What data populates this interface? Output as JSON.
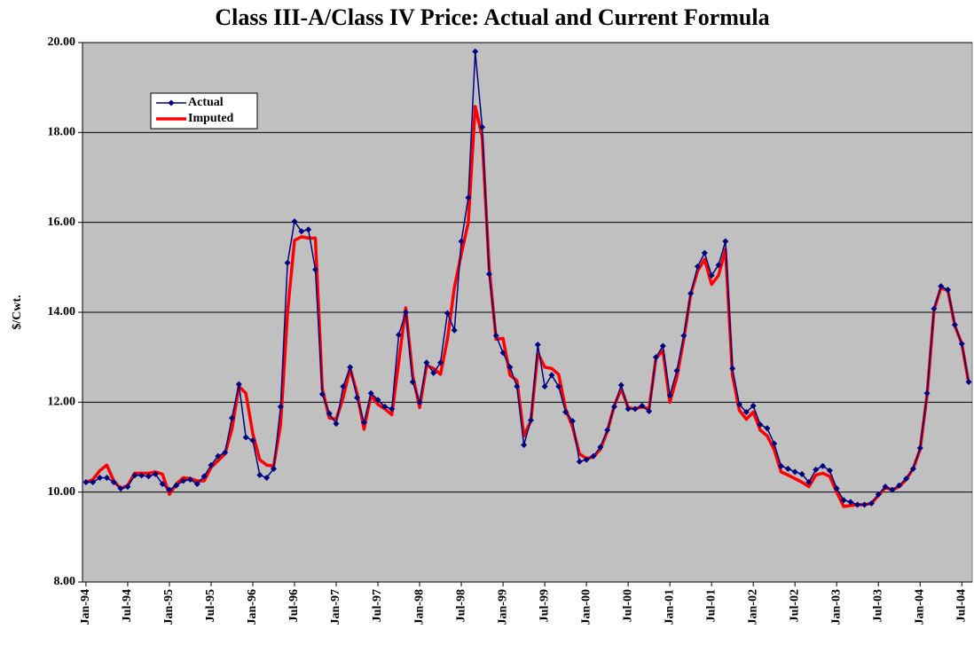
{
  "chart_data": {
    "type": "line",
    "title": "Class III-A/Class IV Price: Actual and Current Formula",
    "y_label": "$/Cwt.",
    "ylim": [
      8,
      20
    ],
    "yticks": [
      {
        "value": 8,
        "label": "8.00"
      },
      {
        "value": 10,
        "label": "10.00"
      },
      {
        "value": 12,
        "label": "12.00"
      },
      {
        "value": 14,
        "label": "14.00"
      },
      {
        "value": 16,
        "label": "16.00"
      },
      {
        "value": 18,
        "label": "18.00"
      },
      {
        "value": 20,
        "label": "20.00"
      }
    ],
    "grid": true,
    "legend": "upper-left",
    "categories": [
      "Jan-94",
      null,
      null,
      null,
      null,
      null,
      "Jul-94",
      null,
      null,
      null,
      null,
      null,
      "Jan-95",
      null,
      null,
      null,
      null,
      null,
      "Jul-95",
      null,
      null,
      null,
      null,
      null,
      "Jan-96",
      null,
      null,
      null,
      null,
      null,
      "Jul-96",
      null,
      null,
      null,
      null,
      null,
      "Jan-97",
      null,
      null,
      null,
      null,
      null,
      "Jul-97",
      null,
      null,
      null,
      null,
      null,
      "Jan-98",
      null,
      null,
      null,
      null,
      null,
      "Jul-98",
      null,
      null,
      null,
      null,
      null,
      "Jan-99",
      null,
      null,
      null,
      null,
      null,
      "Jul-99",
      null,
      null,
      null,
      null,
      null,
      "Jan-00",
      null,
      null,
      null,
      null,
      null,
      "Jul-00",
      null,
      null,
      null,
      null,
      null,
      "Jan-01",
      null,
      null,
      null,
      null,
      null,
      "Jul-01",
      null,
      null,
      null,
      null,
      null,
      "Jan-02",
      null,
      null,
      null,
      null,
      null,
      "Jul-02",
      null,
      null,
      null,
      null,
      null,
      "Jan-03",
      null,
      null,
      null,
      null,
      null,
      "Jul-03",
      null,
      null,
      null,
      null,
      null,
      "Jan-04",
      null,
      null,
      null,
      null,
      null,
      "Jul-04",
      null
    ],
    "series": [
      {
        "name": "Actual",
        "color": "#000080",
        "marker": "diamond",
        "values": [
          10.22,
          10.22,
          10.32,
          10.32,
          10.22,
          10.08,
          10.12,
          10.37,
          10.37,
          10.35,
          10.4,
          10.18,
          10.05,
          10.15,
          10.25,
          10.28,
          10.18,
          10.35,
          10.6,
          10.8,
          10.88,
          11.65,
          12.4,
          11.22,
          11.15,
          10.38,
          10.32,
          10.52,
          11.9,
          15.1,
          16.02,
          15.8,
          15.84,
          14.95,
          12.18,
          11.75,
          11.52,
          12.35,
          12.78,
          12.1,
          11.55,
          12.2,
          12.05,
          11.9,
          11.85,
          13.5,
          14.0,
          12.45,
          12.0,
          12.88,
          12.65,
          12.88,
          13.98,
          13.6,
          15.58,
          16.55,
          19.8,
          18.12,
          14.85,
          13.48,
          13.1,
          12.78,
          12.35,
          11.05,
          11.6,
          13.28,
          12.35,
          12.6,
          12.35,
          11.78,
          11.58,
          10.68,
          10.72,
          10.8,
          11.0,
          11.38,
          11.9,
          12.38,
          11.85,
          11.85,
          11.92,
          11.8,
          13.0,
          13.25,
          12.15,
          12.7,
          13.48,
          14.42,
          15.02,
          15.32,
          14.82,
          15.05,
          15.58,
          12.75,
          11.95,
          11.78,
          11.92,
          11.5,
          11.42,
          11.08,
          10.58,
          10.52,
          10.45,
          10.4,
          10.22,
          10.5,
          10.58,
          10.48,
          10.08,
          9.82,
          9.78,
          9.72,
          9.72,
          9.75,
          9.95,
          10.12,
          10.05,
          10.15,
          10.3,
          10.52,
          10.98,
          12.2,
          14.08,
          14.58,
          14.5,
          13.72,
          13.3,
          12.45
        ]
      },
      {
        "name": "Imputed",
        "color": "#ff0000",
        "values": [
          10.22,
          10.28,
          10.48,
          10.6,
          10.25,
          10.08,
          10.15,
          10.42,
          10.42,
          10.42,
          10.45,
          10.4,
          9.95,
          10.18,
          10.32,
          10.3,
          10.25,
          10.25,
          10.55,
          10.7,
          10.85,
          11.4,
          12.35,
          12.2,
          11.3,
          10.72,
          10.6,
          10.58,
          11.5,
          14.0,
          15.6,
          15.68,
          15.65,
          15.65,
          12.3,
          11.65,
          11.62,
          12.1,
          12.75,
          12.2,
          11.4,
          12.15,
          11.95,
          11.85,
          11.72,
          12.9,
          14.1,
          12.6,
          11.88,
          12.82,
          12.75,
          12.62,
          13.4,
          14.55,
          15.3,
          16.0,
          18.58,
          17.9,
          15.0,
          13.4,
          13.42,
          12.6,
          12.48,
          11.25,
          11.58,
          13.1,
          12.78,
          12.75,
          12.62,
          11.85,
          11.45,
          10.85,
          10.75,
          10.78,
          10.95,
          11.35,
          11.92,
          12.3,
          11.88,
          11.85,
          11.9,
          11.85,
          12.98,
          13.15,
          12.0,
          12.55,
          13.4,
          14.4,
          14.92,
          15.18,
          14.62,
          14.82,
          15.4,
          12.6,
          11.82,
          11.62,
          11.78,
          11.38,
          11.25,
          10.95,
          10.45,
          10.38,
          10.3,
          10.22,
          10.12,
          10.38,
          10.42,
          10.35,
          10.0,
          9.68,
          9.7,
          9.72,
          9.72,
          9.75,
          9.92,
          10.1,
          10.05,
          10.12,
          10.28,
          10.52,
          10.95,
          12.15,
          14.05,
          14.55,
          14.48,
          13.7,
          13.3,
          12.42
        ]
      }
    ]
  }
}
